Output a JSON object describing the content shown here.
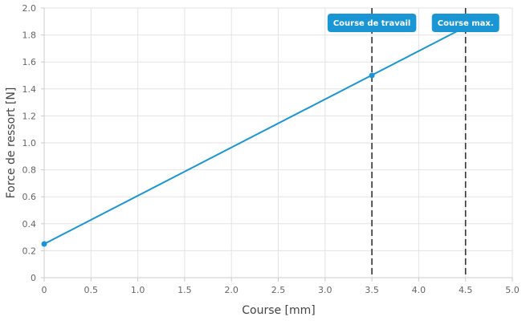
{
  "chart_data": {
    "type": "line",
    "xlabel": "Course [mm]",
    "ylabel": "Force de ressort [N]",
    "xlim": [
      0,
      5.0
    ],
    "ylim": [
      0,
      2.0
    ],
    "x_ticks": [
      "0",
      "0.5",
      "1.0",
      "1.5",
      "2.0",
      "2.5",
      "3.0",
      "3.5",
      "4.0",
      "4.5",
      "5.0"
    ],
    "x_tick_values": [
      0,
      0.5,
      1.0,
      1.5,
      2.0,
      2.5,
      3.0,
      3.5,
      4.0,
      4.5,
      5.0
    ],
    "y_ticks": [
      "0",
      "0.2",
      "0.4",
      "0.6",
      "0.8",
      "1.0",
      "1.2",
      "1.4",
      "1.6",
      "1.8",
      "2.0"
    ],
    "y_tick_values": [
      0,
      0.2,
      0.4,
      0.6,
      0.8,
      1.0,
      1.2,
      1.4,
      1.6,
      1.8,
      2.0
    ],
    "grid": true,
    "series": [
      {
        "color": "#1a96d4",
        "x": [
          0,
          4.5
        ],
        "y": [
          0.25,
          1.86
        ],
        "markers": [
          {
            "x": 0,
            "y": 0.25
          },
          {
            "x": 3.5,
            "y": 1.5
          }
        ]
      }
    ],
    "annotations": [
      {
        "label": "Course de travail",
        "x": 3.5
      },
      {
        "label": "Course max.",
        "x": 4.5
      }
    ],
    "colors": {
      "line": "#1a96d4",
      "callout": "#1a96d4",
      "grid": "#e3e3e3",
      "axis": "#cccccc",
      "vline": "#333333"
    }
  }
}
